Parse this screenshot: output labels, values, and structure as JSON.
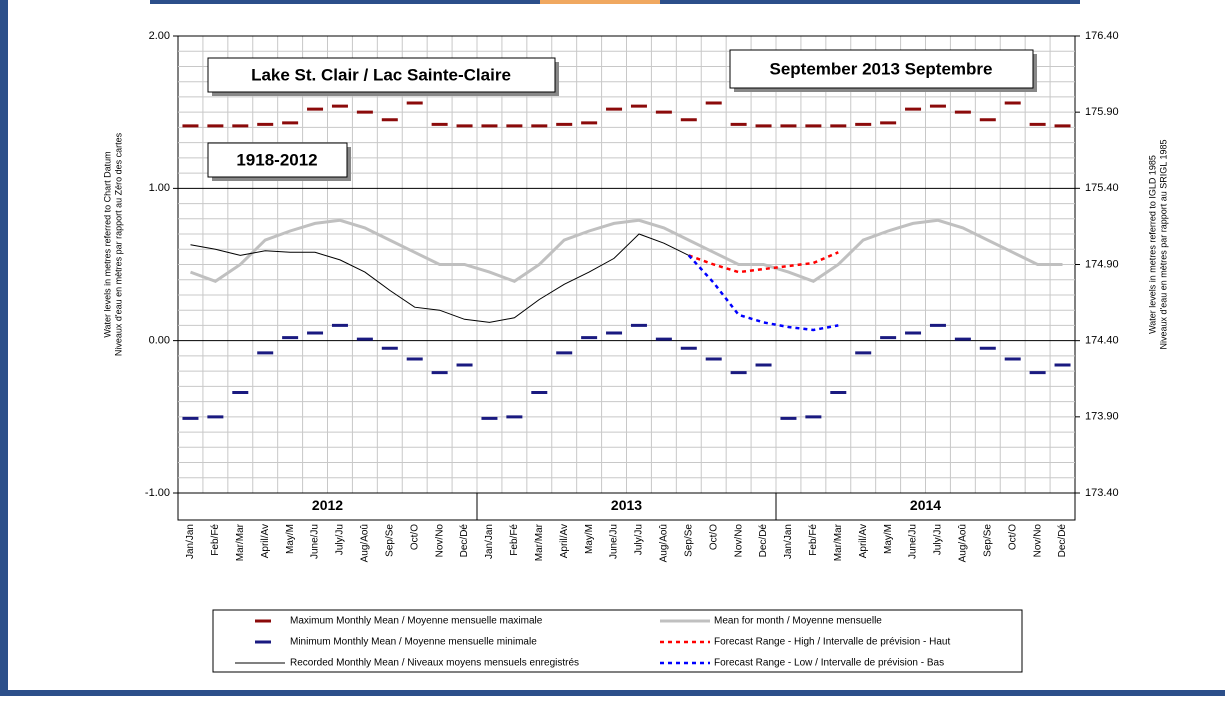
{
  "chart_data": {
    "type": "line",
    "title": "Lake St. Clair / Lac Sainte-Claire",
    "subtitle": "September 2013 Septembre",
    "period": "1918-2012",
    "ylabel": [
      "Water levels in metres referred to Chart Datum",
      "Niveaux d'eau en mètres par rapport au Zéro des cartes"
    ],
    "y2label": [
      "Water levels in metres referred to IGLD 1985",
      "Niveaux d'eau en mètres par rapport au SRIGL 1985"
    ],
    "years": [
      "2012",
      "2013",
      "2014"
    ],
    "categories": [
      "Jan/Jan",
      "Feb/Fé",
      "Mar/Mar",
      "April/Av",
      "May/M",
      "June/Ju",
      "July/Ju",
      "Aug/Aoû",
      "Sep/Se",
      "Oct/O",
      "Nov/No",
      "Dec/Dé",
      "Jan/Jan",
      "Feb/Fé",
      "Mar/Mar",
      "April/Av",
      "May/M",
      "June/Ju",
      "July/Ju",
      "Aug/Aoû",
      "Sep/Se",
      "Oct/O",
      "Nov/No",
      "Dec/Dé",
      "Jan/Jan",
      "Feb/Fé",
      "Mar/Mar",
      "April/Av",
      "May/M",
      "June/Ju",
      "July/Ju",
      "Aug/Aoû",
      "Sep/Se",
      "Oct/O",
      "Nov/No",
      "Dec/Dé"
    ],
    "ylim": [
      -1,
      2
    ],
    "yticks": [
      {
        "value": 2,
        "label": "2.00"
      },
      {
        "value": 1,
        "label": "1.00"
      },
      {
        "value": 0,
        "label": "0.00"
      },
      {
        "value": -1,
        "label": "-1.00"
      }
    ],
    "y2lim": [
      173.4,
      176.4
    ],
    "y2ticks": [
      {
        "value": 176.4,
        "label": "176.40"
      },
      {
        "value": 175.9,
        "label": "175.90"
      },
      {
        "value": 175.4,
        "label": "175.40"
      },
      {
        "value": 174.9,
        "label": "174.90"
      },
      {
        "value": 174.4,
        "label": "174.40"
      },
      {
        "value": 173.9,
        "label": "173.90"
      },
      {
        "value": 173.4,
        "label": "173.40"
      }
    ],
    "grid": true,
    "series": [
      {
        "name": "Maximum Monthly Mean / Moyenne mensuelle maximale",
        "color": "#8b0a0a",
        "style": "marker",
        "values": [
          1.41,
          1.41,
          1.41,
          1.42,
          1.43,
          1.52,
          1.54,
          1.5,
          1.45,
          1.56,
          1.42,
          1.41,
          1.41,
          1.41,
          1.41,
          1.42,
          1.43,
          1.52,
          1.54,
          1.5,
          1.45,
          1.56,
          1.42,
          1.41,
          1.41,
          1.41,
          1.41,
          1.42,
          1.43,
          1.52,
          1.54,
          1.5,
          1.45,
          1.56,
          1.42,
          1.41
        ]
      },
      {
        "name": "Minimum Monthly Mean / Moyenne mensuelle minimale",
        "color": "#1a1a80",
        "style": "marker",
        "values": [
          -0.51,
          -0.5,
          -0.34,
          -0.08,
          0.02,
          0.05,
          0.1,
          0.01,
          -0.05,
          -0.12,
          -0.21,
          -0.16,
          -0.51,
          -0.5,
          -0.34,
          -0.08,
          0.02,
          0.05,
          0.1,
          0.01,
          -0.05,
          -0.12,
          -0.21,
          -0.16,
          -0.51,
          -0.5,
          -0.34,
          -0.08,
          0.02,
          0.05,
          0.1,
          0.01,
          -0.05,
          -0.12,
          -0.21,
          -0.16
        ]
      },
      {
        "name": "Recorded Monthly Mean / Niveaux moyens mensuels enregistrés",
        "color": "#000000",
        "style": "line",
        "values": [
          0.63,
          0.6,
          0.56,
          0.59,
          0.58,
          0.58,
          0.53,
          0.45,
          0.33,
          0.22,
          0.2,
          0.14,
          0.12,
          0.15,
          0.27,
          0.37,
          0.45,
          0.54,
          0.7,
          0.64,
          0.56,
          null,
          null,
          null,
          null,
          null,
          null,
          null,
          null,
          null,
          null,
          null,
          null,
          null,
          null,
          null
        ]
      },
      {
        "name": "Mean for month / Moyenne mensuelle",
        "color": "#c0c0c0",
        "style": "thick",
        "values": [
          0.45,
          0.39,
          0.5,
          0.66,
          0.72,
          0.77,
          0.79,
          0.74,
          0.66,
          0.58,
          0.5,
          0.5,
          0.45,
          0.39,
          0.5,
          0.66,
          0.72,
          0.77,
          0.79,
          0.74,
          0.66,
          0.58,
          0.5,
          0.5,
          0.45,
          0.39,
          0.5,
          0.66,
          0.72,
          0.77,
          0.79,
          0.74,
          0.66,
          0.58,
          0.5,
          0.5
        ]
      },
      {
        "name": "Forecast Range - High / Intervalle de prévision - Haut",
        "color": "#ff0000",
        "style": "dotted",
        "values": [
          null,
          null,
          null,
          null,
          null,
          null,
          null,
          null,
          null,
          null,
          null,
          null,
          null,
          null,
          null,
          null,
          null,
          null,
          null,
          null,
          0.56,
          0.5,
          0.45,
          0.47,
          0.49,
          0.51,
          0.58,
          null,
          null,
          null,
          null,
          null,
          null,
          null,
          null,
          null
        ]
      },
      {
        "name": "Forecast Range - Low / Intervalle de prévision - Bas",
        "color": "#0000ff",
        "style": "dotted",
        "values": [
          null,
          null,
          null,
          null,
          null,
          null,
          null,
          null,
          null,
          null,
          null,
          null,
          null,
          null,
          null,
          null,
          null,
          null,
          null,
          null,
          0.56,
          0.38,
          0.17,
          0.12,
          0.09,
          0.07,
          0.1,
          null,
          null,
          null,
          null,
          null,
          null,
          null,
          null,
          null
        ]
      }
    ]
  }
}
